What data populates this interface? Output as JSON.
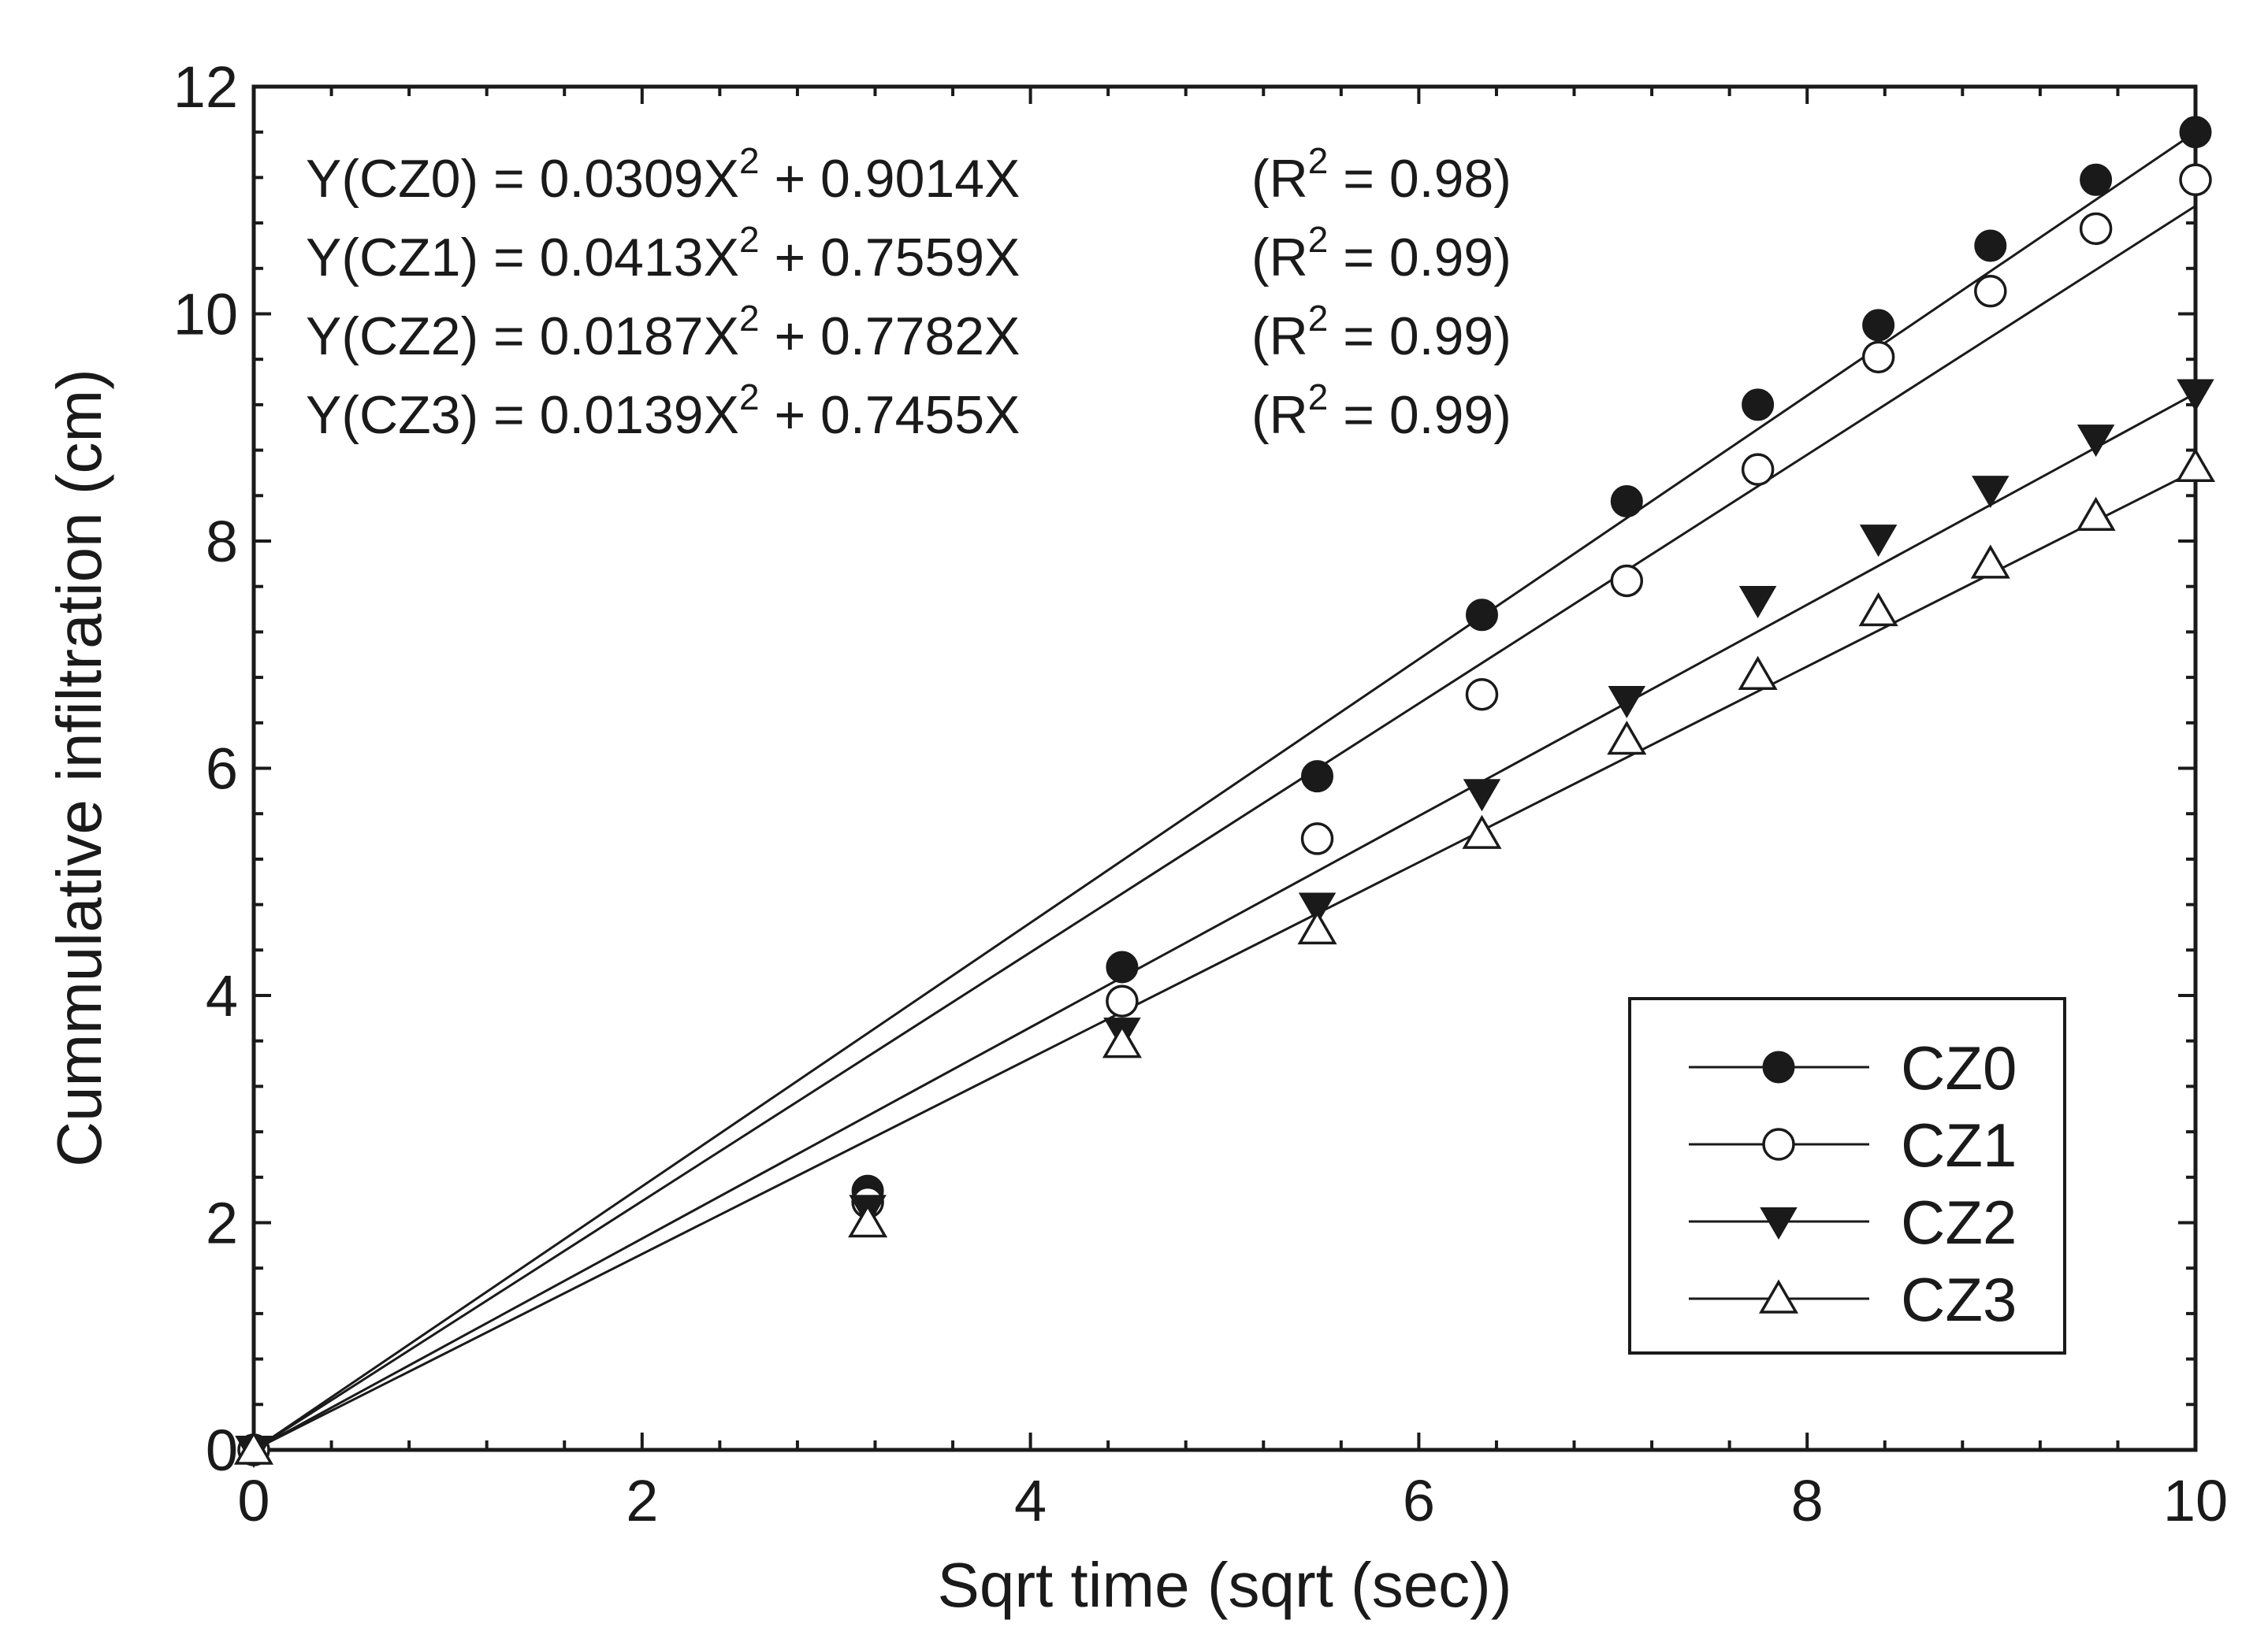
{
  "chart_data": {
    "type": "scatter",
    "title": "",
    "xlabel": "Sqrt time (sqrt (sec))",
    "ylabel": "Cummulative infiltration (cm)",
    "xlim": [
      0,
      10
    ],
    "ylim": [
      0,
      12
    ],
    "xticks": [
      0,
      2,
      4,
      6,
      8,
      10
    ],
    "yticks": [
      0,
      2,
      4,
      6,
      8,
      10,
      12
    ],
    "grid": false,
    "legend_position": "bottom-right",
    "x": [
      0,
      3.162,
      4.472,
      5.477,
      6.325,
      7.071,
      7.746,
      8.367,
      8.944,
      9.487,
      10
    ],
    "series": [
      {
        "name": "CZ0",
        "marker": "filled-circle",
        "values": [
          0,
          2.28,
          4.25,
          5.93,
          7.35,
          8.35,
          9.2,
          9.9,
          10.6,
          11.18,
          11.6
        ],
        "fit_slope": 1.16
      },
      {
        "name": "CZ1",
        "marker": "open-circle",
        "values": [
          0,
          2.18,
          3.95,
          5.38,
          6.65,
          7.65,
          8.63,
          9.62,
          10.2,
          10.75,
          11.18
        ],
        "fit_slope": 1.095
      },
      {
        "name": "CZ2",
        "marker": "filled-triangle-down",
        "values": [
          0,
          2.12,
          3.68,
          4.78,
          5.78,
          6.6,
          7.48,
          8.02,
          8.45,
          8.9,
          9.3
        ],
        "fit_slope": 0.93
      },
      {
        "name": "CZ3",
        "marker": "open-triangle-up",
        "values": [
          0,
          2.0,
          3.58,
          4.58,
          5.42,
          6.25,
          6.82,
          7.38,
          7.8,
          8.22,
          8.65
        ],
        "fit_slope": 0.862
      }
    ],
    "equations": [
      {
        "name": "CZ0",
        "lhs": "Y(CZ0) = 0.0309X",
        "sup": "2",
        "rhs": " + 0.9014X",
        "r_open": "(R",
        "r_sup": "2",
        "r_close": " = 0.98)"
      },
      {
        "name": "CZ1",
        "lhs": "Y(CZ1) = 0.0413X",
        "sup": "2",
        "rhs": " + 0.7559X",
        "r_open": "(R",
        "r_sup": "2",
        "r_close": " = 0.99)"
      },
      {
        "name": "CZ2",
        "lhs": "Y(CZ2) = 0.0187X",
        "sup": "2",
        "rhs": " + 0.7782X",
        "r_open": "(R",
        "r_sup": "2",
        "r_close": " = 0.99)"
      },
      {
        "name": "CZ3",
        "lhs": "Y(CZ3) = 0.0139X",
        "sup": "2",
        "rhs": " + 0.7455X",
        "r_open": "(R",
        "r_sup": "2",
        "r_close": " = 0.99)"
      }
    ]
  },
  "colors": {
    "ink": "#1a1a1a",
    "background": "#ffffff"
  }
}
